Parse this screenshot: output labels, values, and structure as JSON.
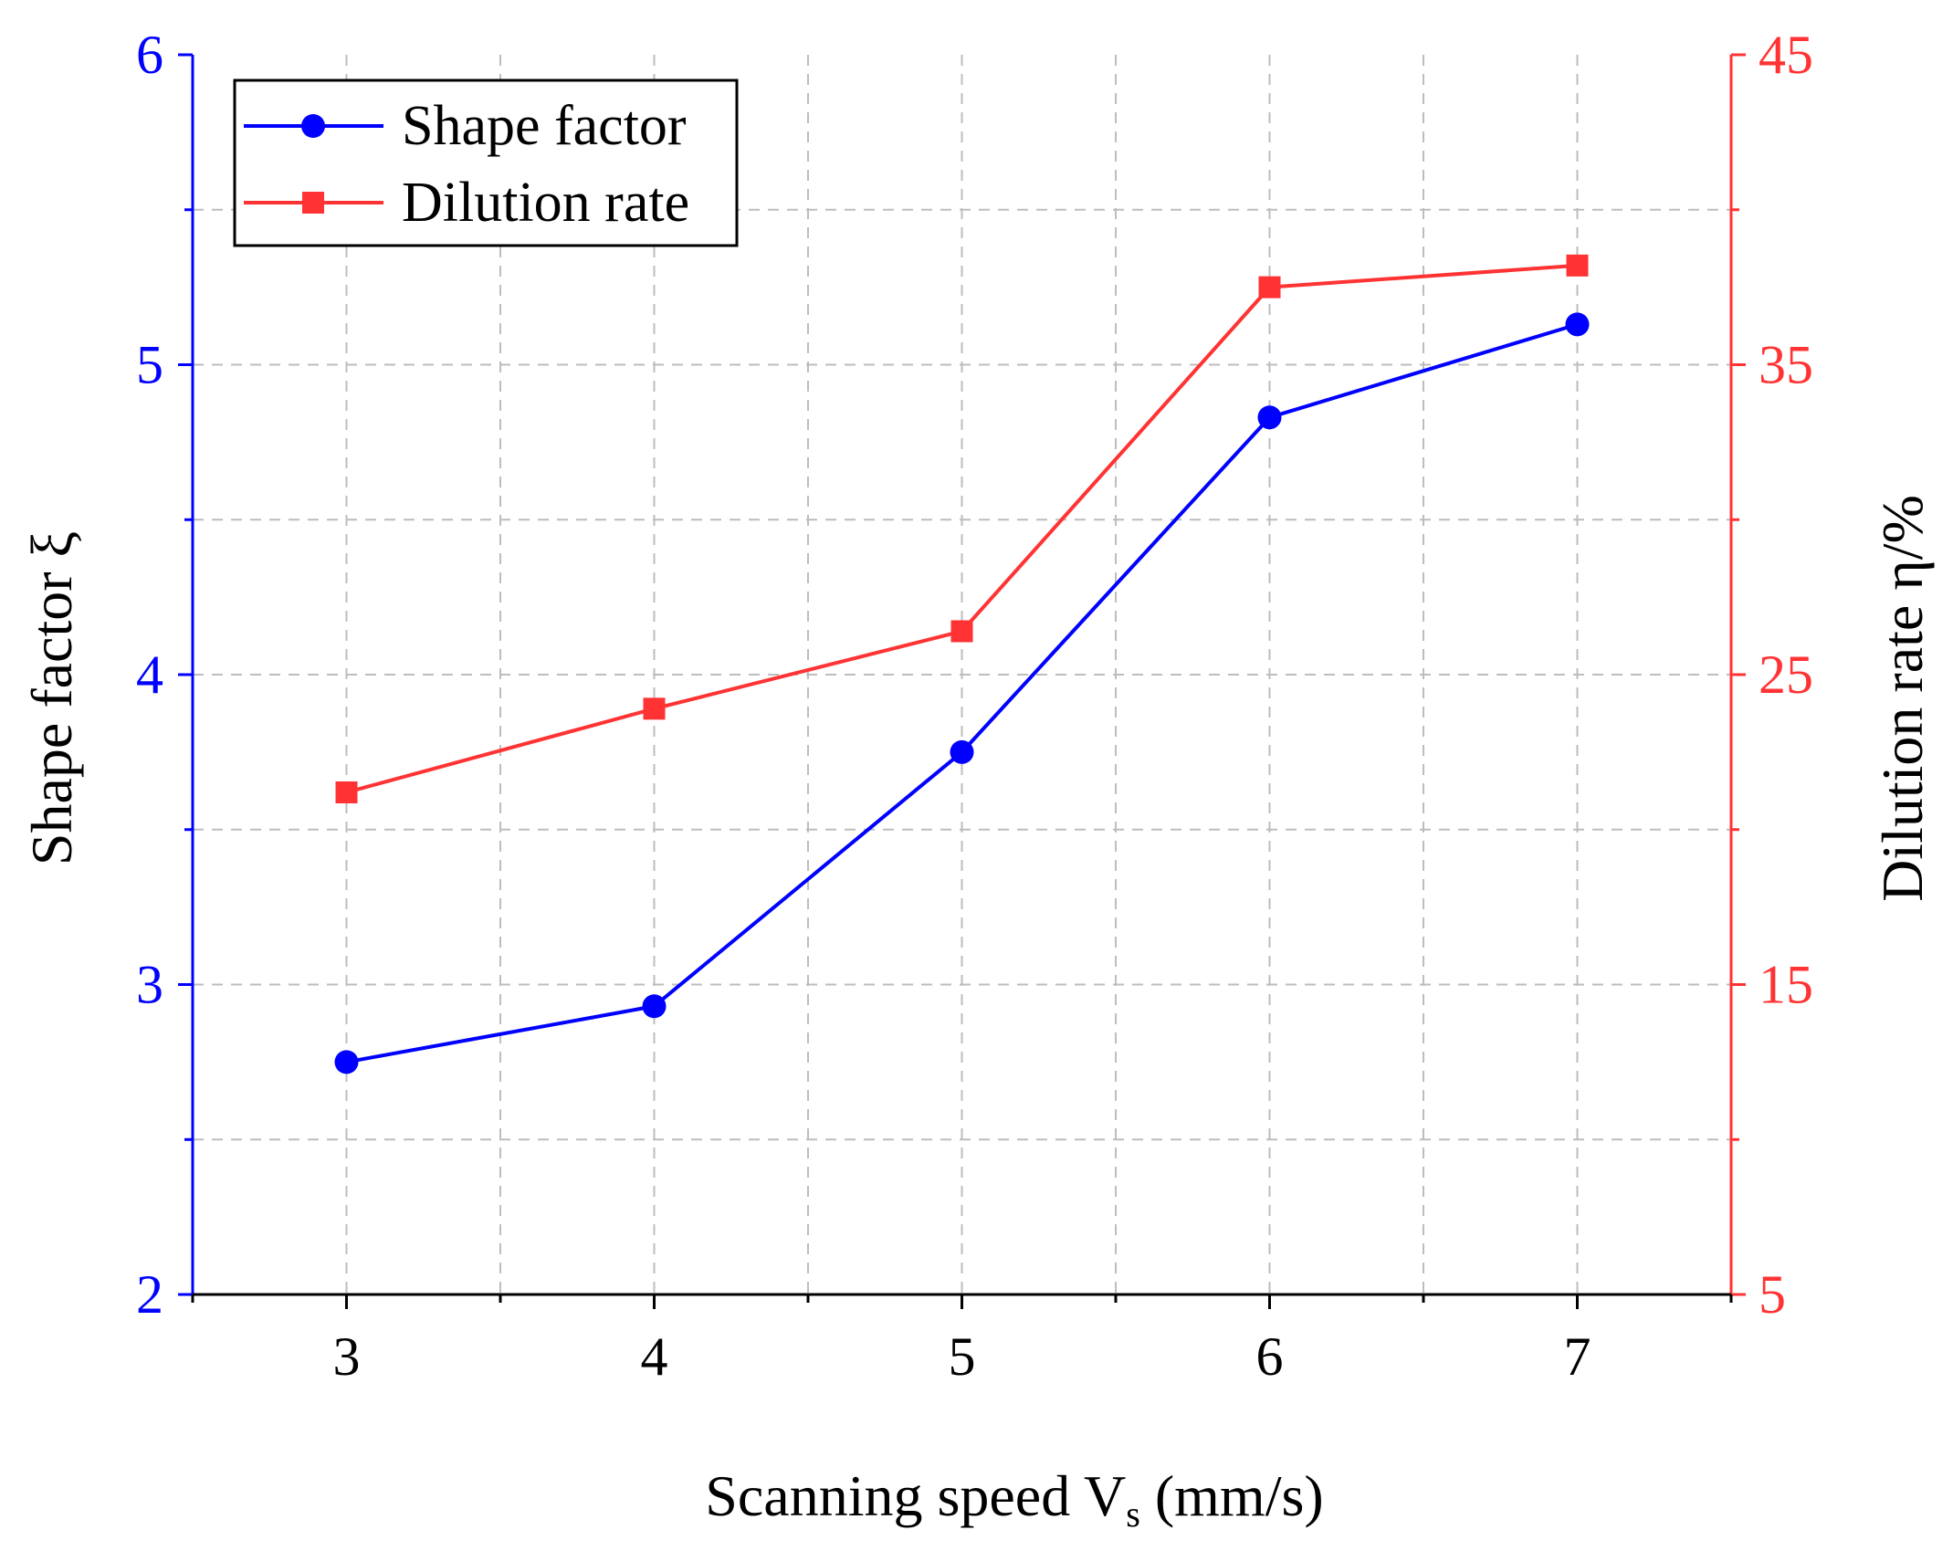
{
  "chart_data": {
    "type": "line",
    "title": "",
    "x": [
      3,
      4,
      5,
      6,
      7
    ],
    "x_ticks": [
      "3",
      "4",
      "5",
      "6",
      "7"
    ],
    "xlim": [
      2.5,
      7.5
    ],
    "xlabel_main": "Scanning speed V",
    "xlabel_sub": "s",
    "xlabel_unit": " (mm/s)",
    "ylabel_left": "Shape factor ξ",
    "ylabel_right": "Dilution rate η/%",
    "ylim_left": [
      2,
      6
    ],
    "ylim_right": [
      5,
      45
    ],
    "y_ticks_left": [
      "2",
      "3",
      "4",
      "5",
      "6"
    ],
    "y_ticks_right": [
      "5",
      "15",
      "25",
      "35",
      "45"
    ],
    "grid": true,
    "legend_position": "top-left",
    "series": [
      {
        "name": "Shape factor",
        "axis": "left",
        "color": "#0000ff",
        "marker": "circle",
        "values": [
          2.75,
          2.93,
          3.75,
          4.83,
          5.13
        ]
      },
      {
        "name": "Dilution rate",
        "axis": "right",
        "color": "#ff3333",
        "marker": "square",
        "values": [
          21.2,
          23.9,
          26.4,
          37.5,
          38.2
        ]
      }
    ],
    "colors": {
      "left_axis": "#0000ff",
      "right_axis": "#ff3333",
      "frame": "#000000",
      "grid": "#bdbdbd"
    }
  }
}
